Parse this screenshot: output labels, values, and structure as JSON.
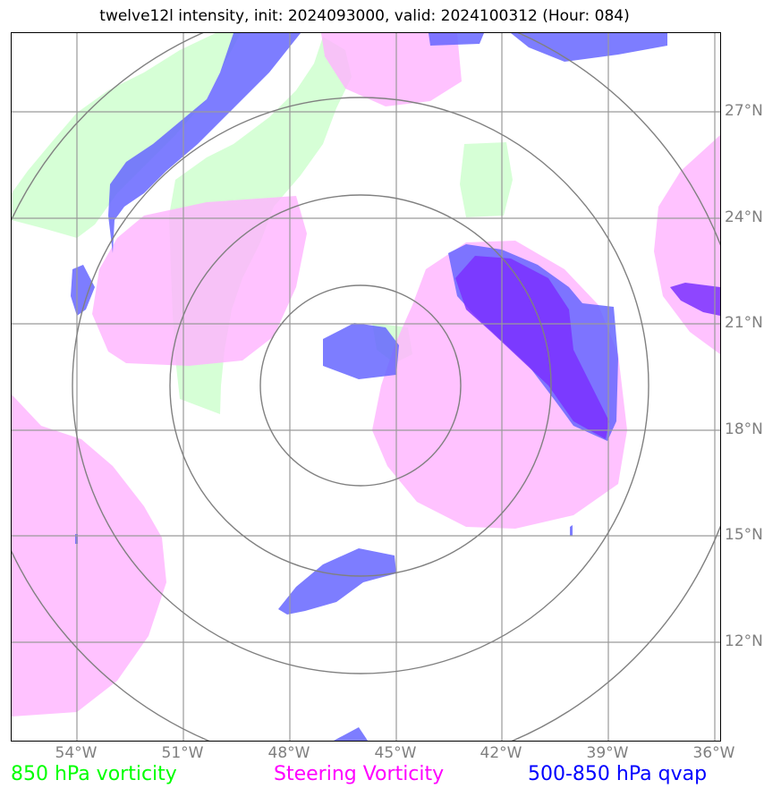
{
  "title": "twelve12l intensity, init: 2024093000, valid: 2024100312 (Hour: 084)",
  "axes": {
    "lon_labels": [
      "54°W",
      "51°W",
      "48°W",
      "45°W",
      "42°W",
      "39°W",
      "36°W"
    ],
    "lat_labels": [
      "27°N",
      "24°N",
      "21°N",
      "18°N",
      "15°N",
      "12°N"
    ]
  },
  "legend": {
    "vorticity_850": {
      "label": "850 hPa vorticity",
      "color": "#00ff00"
    },
    "steering_vorticity": {
      "label": "Steering Vorticity",
      "color": "#ff00ff"
    },
    "qvap_500_850": {
      "label": "500-850 hPa qvap",
      "color": "#0000ff"
    }
  },
  "colors": {
    "green_fill": "#ccffcc",
    "pink_fill": "#ffb3ff",
    "blue_fill": "#6666ff",
    "grid": "#9a9a9a",
    "range_ring": "#808080"
  }
}
